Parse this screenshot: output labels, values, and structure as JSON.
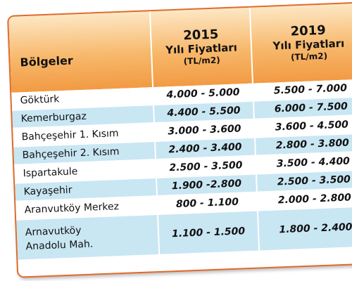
{
  "table": {
    "header": {
      "region": "Bölgeler",
      "col2015": {
        "year": "2015",
        "subtitle": "Yılı Fiyatları",
        "unit": "(TL/m2)"
      },
      "col2019": {
        "year": "2019",
        "subtitle": "Yılı Fiyatları",
        "unit": "(TL/m2)"
      }
    },
    "rows": [
      {
        "region": "Göktürk",
        "v2015": "4.000 - 5.000",
        "v2019": "5.500 - 7.000"
      },
      {
        "region": "Kemerburgaz",
        "v2015": "4.400 - 5.500",
        "v2019": "6.000 - 7.500"
      },
      {
        "region": "Bahçeşehir 1. Kısım",
        "v2015": "3.000 - 3.600",
        "v2019": "3.600 - 4.500"
      },
      {
        "region": "Bahçeşehir 2. Kısım",
        "v2015": "2.400 - 3.400",
        "v2019": "2.800 - 3.800"
      },
      {
        "region": "Ispartakule",
        "v2015": "2.500 - 3.500",
        "v2019": "3.500 - 4.400"
      },
      {
        "region": "Kayaşehir",
        "v2015": "1.900 -2.800",
        "v2019": "2.500 - 3.500"
      },
      {
        "region": "Aranvutköy Merkez",
        "v2015": "800 - 1.100",
        "v2019": "2.000 - 2.800"
      },
      {
        "region_line1": "Arnavutköy",
        "region_line2": "Anadolu Mah.",
        "v2015": "1.100 - 1.500",
        "v2019": "1.800 - 2.400"
      }
    ]
  },
  "colors": {
    "border": "#e06a2a",
    "header_gradient_top": "#fde7c4",
    "header_gradient_bottom": "#f29a43",
    "stripe_blue": "#c9e6f3"
  }
}
